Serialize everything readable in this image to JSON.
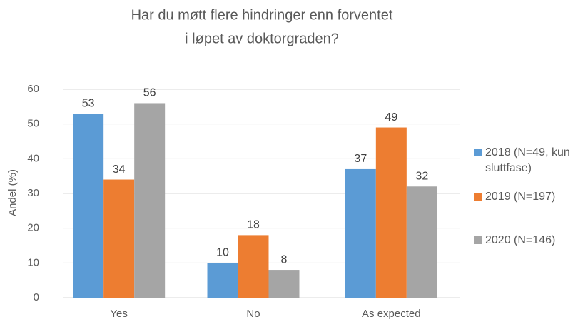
{
  "chart_data": {
    "type": "bar",
    "title": [
      "Har du møtt flere hindringer enn forventet",
      "i løpet av doktorgraden?"
    ],
    "ylabel": "Andel (%)",
    "categories": [
      "Yes",
      "No",
      "As expected"
    ],
    "series": [
      {
        "name": "2018 (N=49, kun sluttfase)",
        "color": "#5b9bd5",
        "values": [
          53,
          10,
          37
        ]
      },
      {
        "name": "2019 (N=197)",
        "color": "#ed7d31",
        "values": [
          34,
          18,
          49
        ]
      },
      {
        "name": "2020 (N=146)",
        "color": "#a5a5a5",
        "values": [
          56,
          8,
          32
        ]
      }
    ],
    "ylim": [
      0,
      60
    ],
    "yticks": [
      0,
      10,
      20,
      30,
      40,
      50,
      60
    ],
    "grid": true,
    "legend": "right"
  }
}
